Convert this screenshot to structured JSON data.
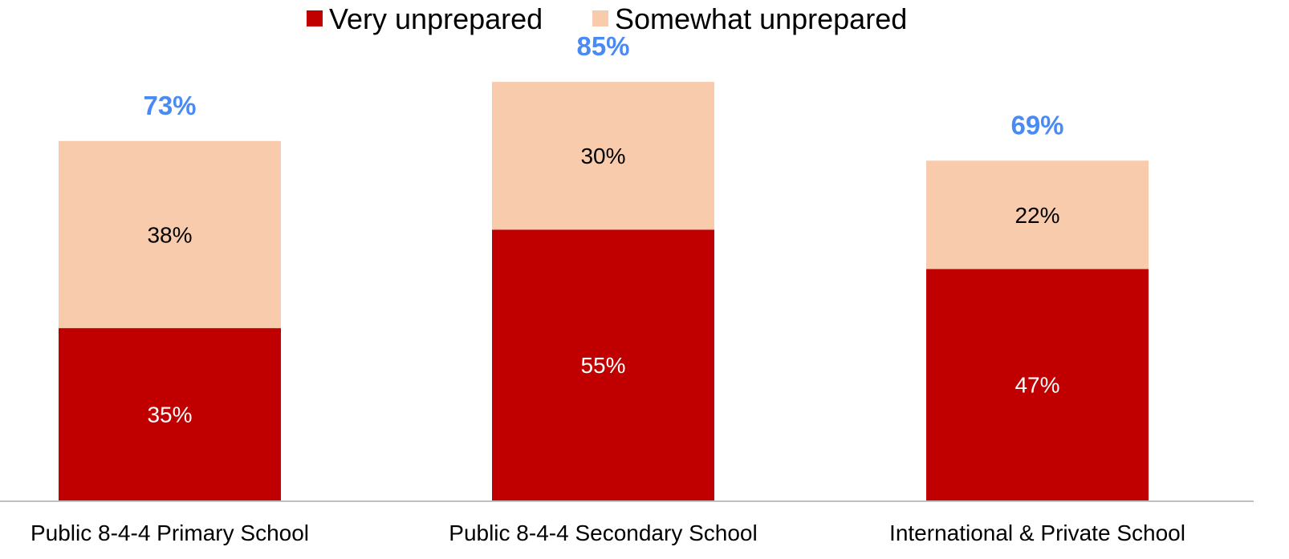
{
  "chart_data": {
    "type": "bar",
    "stacked": true,
    "categories": [
      "Public 8-4-4 Primary School",
      "Public 8-4-4 Secondary School",
      "International & Private School"
    ],
    "series": [
      {
        "name": "Very unprepared",
        "values": [
          35,
          55,
          47
        ],
        "labels": [
          "35%",
          "55%",
          "47%"
        ],
        "color": "#C00000",
        "label_color": "#FFFFFF"
      },
      {
        "name": "Somewhat unprepared",
        "values": [
          38,
          30,
          22
        ],
        "labels": [
          "38%",
          "30%",
          "22%"
        ],
        "color": "#F8CBAD",
        "label_color": "#000000"
      }
    ],
    "totals": [
      73,
      85,
      69
    ],
    "total_labels": [
      "73%",
      "85%",
      "69%"
    ],
    "total_label_color": "#4A8AF4",
    "legend_position": "top",
    "grid": false,
    "ylim": [
      0,
      100
    ]
  }
}
